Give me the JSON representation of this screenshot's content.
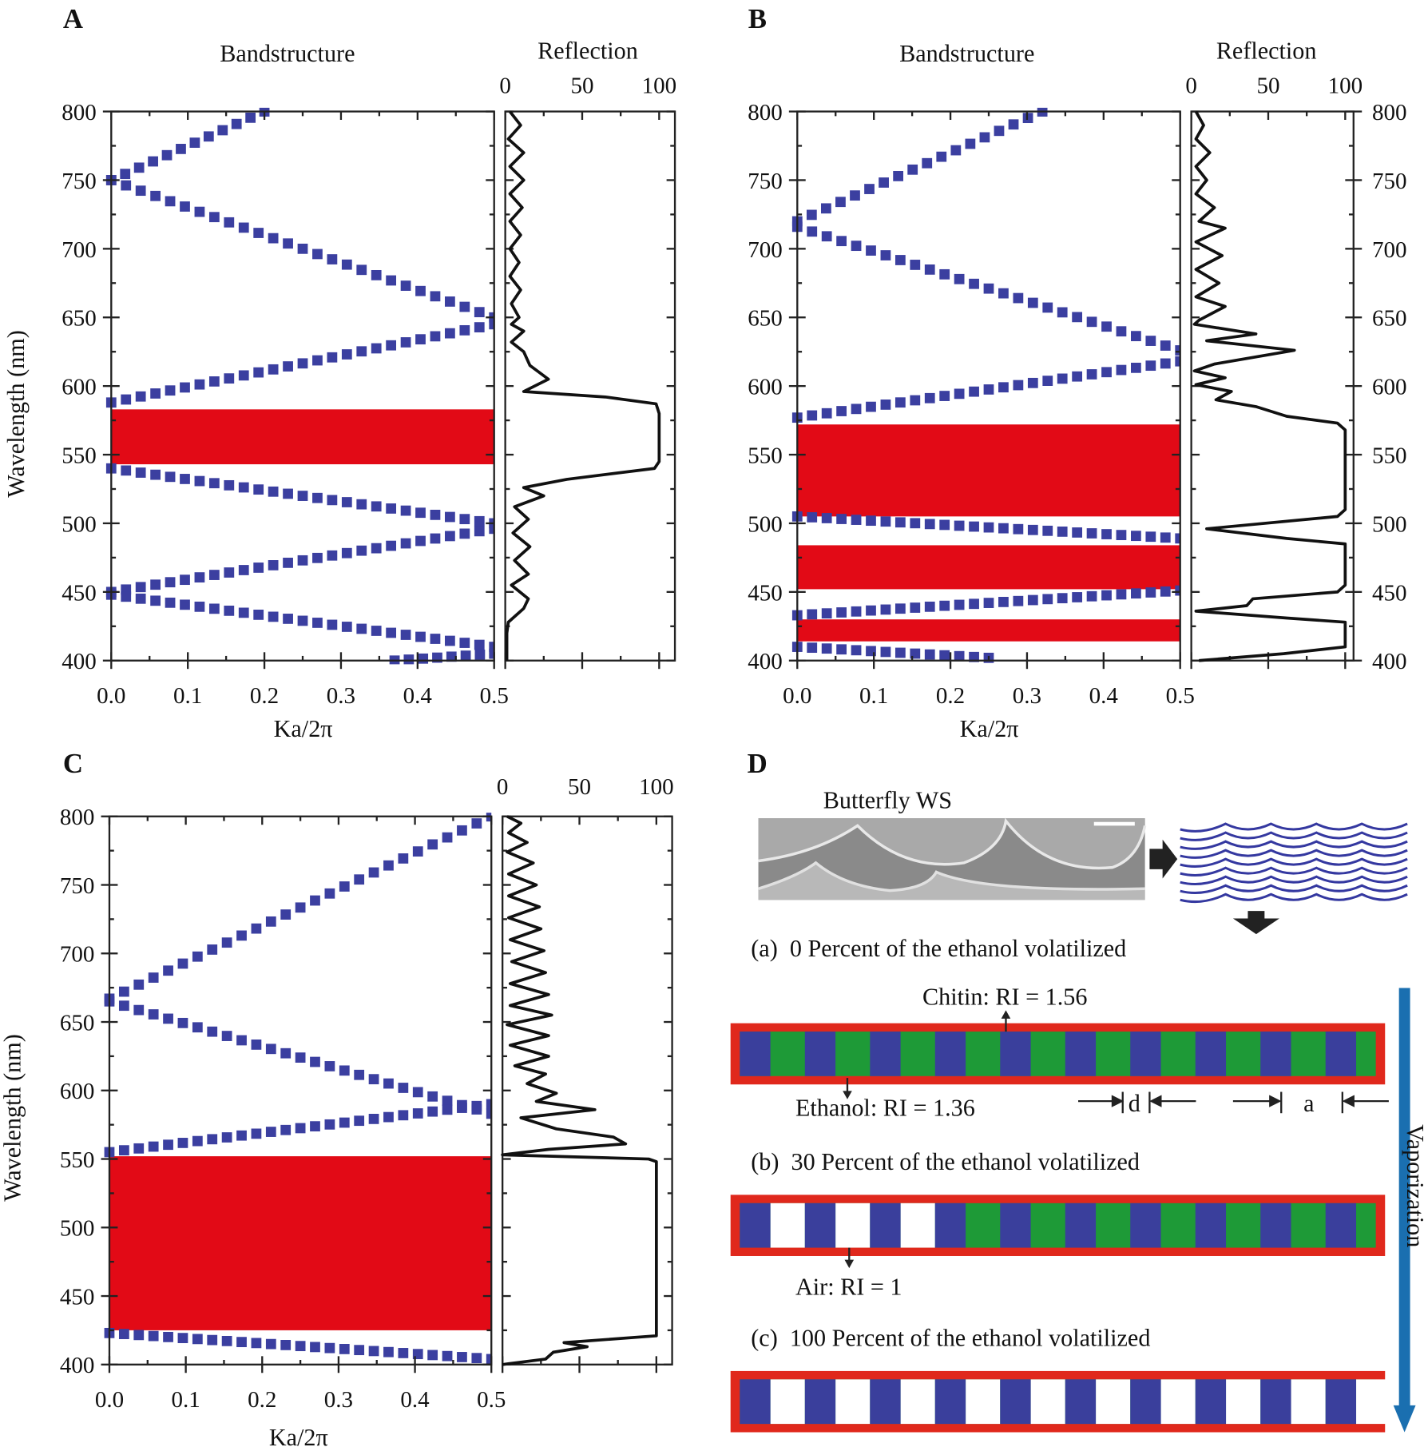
{
  "colors": {
    "band_marker": "#3b3fa0",
    "gap": "#e20a16",
    "reflection": "#111111",
    "chitin": "#3a3f9c",
    "ethanol": "#1e9a37",
    "air": "#ffffff",
    "frame": "#e0281c",
    "vaporization_arrow": "#1a6fb0"
  },
  "chart_data": [
    {
      "panel": "A",
      "type": "scatter+line",
      "band_title": "Bandstructure",
      "reflection_title": "Reflection",
      "xlabel": "Ka/2π",
      "ylabel": "Wavelength (nm)",
      "xlim": [
        0,
        0.5
      ],
      "ylim": [
        400,
        800
      ],
      "reflection_lim": [
        0,
        100
      ],
      "xticks": [
        "0.0",
        "0.1",
        "0.2",
        "0.3",
        "0.4",
        "0.5"
      ],
      "yticks": [
        "400",
        "450",
        "500",
        "550",
        "600",
        "650",
        "700",
        "750",
        "800"
      ],
      "rticks": [
        "0",
        "50",
        "100"
      ],
      "right_axis_labels": false,
      "bands": [
        [
          [
            0,
            750
          ],
          [
            0.2,
            800
          ]
        ],
        [
          [
            0,
            750
          ],
          [
            0.5,
            650
          ]
        ],
        [
          [
            0,
            588
          ],
          [
            0.5,
            645
          ]
        ],
        [
          [
            0,
            540
          ],
          [
            0.5,
            500
          ]
        ],
        [
          [
            0,
            450
          ],
          [
            0.5,
            496
          ]
        ],
        [
          [
            0,
            448
          ],
          [
            0.5,
            410
          ]
        ],
        [
          [
            0.37,
            400
          ],
          [
            0.5,
            405
          ]
        ]
      ],
      "gaps": [
        [
          543,
          583
        ]
      ],
      "reflection": [
        [
          800,
          3
        ],
        [
          790,
          10
        ],
        [
          780,
          2
        ],
        [
          770,
          12
        ],
        [
          760,
          3
        ],
        [
          750,
          12
        ],
        [
          740,
          3
        ],
        [
          730,
          11
        ],
        [
          720,
          3
        ],
        [
          710,
          10
        ],
        [
          700,
          3
        ],
        [
          690,
          9
        ],
        [
          680,
          3
        ],
        [
          670,
          10
        ],
        [
          660,
          4
        ],
        [
          650,
          9
        ],
        [
          645,
          4
        ],
        [
          640,
          12
        ],
        [
          632,
          4
        ],
        [
          625,
          12
        ],
        [
          615,
          16
        ],
        [
          605,
          28
        ],
        [
          596,
          12
        ],
        [
          592,
          65
        ],
        [
          587,
          98
        ],
        [
          580,
          100
        ],
        [
          545,
          100
        ],
        [
          540,
          97
        ],
        [
          532,
          40
        ],
        [
          526,
          12
        ],
        [
          520,
          25
        ],
        [
          512,
          6
        ],
        [
          503,
          15
        ],
        [
          493,
          5
        ],
        [
          483,
          16
        ],
        [
          473,
          6
        ],
        [
          463,
          15
        ],
        [
          455,
          4
        ],
        [
          445,
          15
        ],
        [
          438,
          12
        ],
        [
          428,
          2
        ],
        [
          420,
          1
        ],
        [
          400,
          1
        ]
      ]
    },
    {
      "panel": "B",
      "type": "scatter+line",
      "band_title": "Bandstructure",
      "reflection_title": "Reflection",
      "xlabel": "Ka/2π",
      "ylabel": "",
      "xlim": [
        0,
        0.5
      ],
      "ylim": [
        400,
        800
      ],
      "reflection_lim": [
        0,
        100
      ],
      "xticks": [
        "0.0",
        "0.1",
        "0.2",
        "0.3",
        "0.4",
        "0.5"
      ],
      "yticks": [
        "400",
        "450",
        "500",
        "550",
        "600",
        "650",
        "700",
        "750",
        "800"
      ],
      "rticks": [
        "0",
        "50",
        "100"
      ],
      "right_axis_labels": true,
      "bands": [
        [
          [
            0,
            720
          ],
          [
            0.32,
            800
          ]
        ],
        [
          [
            0,
            716
          ],
          [
            0.5,
            626
          ]
        ],
        [
          [
            0,
            577
          ],
          [
            0.5,
            618
          ]
        ],
        [
          [
            0,
            505
          ],
          [
            0.5,
            489
          ]
        ],
        [
          [
            0,
            433
          ],
          [
            0.5,
            451
          ]
        ],
        [
          [
            0,
            410
          ],
          [
            0.25,
            402
          ]
        ]
      ],
      "gaps": [
        [
          505,
          572
        ],
        [
          452,
          484
        ],
        [
          414,
          430
        ]
      ],
      "reflection": [
        [
          800,
          3
        ],
        [
          790,
          8
        ],
        [
          780,
          3
        ],
        [
          770,
          12
        ],
        [
          760,
          3
        ],
        [
          750,
          10
        ],
        [
          740,
          3
        ],
        [
          730,
          15
        ],
        [
          720,
          5
        ],
        [
          715,
          22
        ],
        [
          705,
          3
        ],
        [
          695,
          20
        ],
        [
          685,
          3
        ],
        [
          675,
          18
        ],
        [
          665,
          3
        ],
        [
          658,
          22
        ],
        [
          648,
          5
        ],
        [
          645,
          2
        ],
        [
          638,
          42
        ],
        [
          633,
          10
        ],
        [
          626,
          67
        ],
        [
          616,
          15
        ],
        [
          611,
          2
        ],
        [
          606,
          22
        ],
        [
          601,
          3
        ],
        [
          596,
          26
        ],
        [
          590,
          16
        ],
        [
          585,
          42
        ],
        [
          578,
          62
        ],
        [
          573,
          95
        ],
        [
          568,
          100
        ],
        [
          510,
          100
        ],
        [
          505,
          95
        ],
        [
          496,
          10
        ],
        [
          489,
          62
        ],
        [
          485,
          100
        ],
        [
          455,
          100
        ],
        [
          450,
          95
        ],
        [
          445,
          40
        ],
        [
          440,
          36
        ],
        [
          436,
          3
        ],
        [
          431,
          62
        ],
        [
          428,
          100
        ],
        [
          410,
          100
        ],
        [
          405,
          60
        ],
        [
          400,
          5
        ]
      ]
    },
    {
      "panel": "C",
      "type": "scatter+line",
      "band_title": "",
      "reflection_title": "",
      "xlabel": "Ka/2π",
      "ylabel": "Wavelength (nm)",
      "xlim": [
        0,
        0.5
      ],
      "ylim": [
        400,
        800
      ],
      "reflection_lim": [
        0,
        100
      ],
      "xticks": [
        "0.0",
        "0.1",
        "0.2",
        "0.3",
        "0.4",
        "0.5"
      ],
      "yticks": [
        "400",
        "450",
        "500",
        "550",
        "600",
        "650",
        "700",
        "750",
        "800"
      ],
      "rticks": [
        "0",
        "50",
        "100"
      ],
      "right_axis_labels": false,
      "bands": [
        [
          [
            0,
            667
          ],
          [
            0.5,
            800
          ]
        ],
        [
          [
            0,
            665
          ],
          [
            0.5,
            583
          ]
        ],
        [
          [
            0,
            555
          ],
          [
            0.5,
            590
          ]
        ],
        [
          [
            0,
            423
          ],
          [
            0.5,
            404
          ]
        ]
      ],
      "gaps": [
        [
          425,
          552
        ]
      ],
      "reflection": [
        [
          800,
          3
        ],
        [
          795,
          12
        ],
        [
          788,
          4
        ],
        [
          781,
          16
        ],
        [
          774,
          3
        ],
        [
          766,
          20
        ],
        [
          758,
          4
        ],
        [
          750,
          22
        ],
        [
          742,
          4
        ],
        [
          734,
          24
        ],
        [
          726,
          4
        ],
        [
          718,
          25
        ],
        [
          710,
          5
        ],
        [
          702,
          27
        ],
        [
          694,
          6
        ],
        [
          686,
          28
        ],
        [
          678,
          5
        ],
        [
          670,
          30
        ],
        [
          662,
          5
        ],
        [
          655,
          32
        ],
        [
          648,
          3
        ],
        [
          640,
          30
        ],
        [
          633,
          5
        ],
        [
          625,
          30
        ],
        [
          618,
          8
        ],
        [
          612,
          28
        ],
        [
          605,
          16
        ],
        [
          598,
          35
        ],
        [
          592,
          22
        ],
        [
          586,
          60
        ],
        [
          580,
          12
        ],
        [
          572,
          35
        ],
        [
          566,
          72
        ],
        [
          561,
          80
        ],
        [
          557,
          30
        ],
        [
          553,
          0
        ],
        [
          550,
          95
        ],
        [
          548,
          100
        ],
        [
          421,
          100
        ],
        [
          416,
          40
        ],
        [
          413,
          55
        ],
        [
          409,
          33
        ],
        [
          404,
          28
        ],
        [
          400,
          0
        ]
      ]
    }
  ],
  "diagram": {
    "panel": "D",
    "image_label": "Butterfly WS",
    "step_a": "(a)  0 Percent of the ethanol volatilized",
    "step_b": "(b)  30 Percent of the ethanol volatilized",
    "step_c": "(c)  100 Percent of the ethanol volatilized",
    "chitin_label": "Chitin: RI = 1.56",
    "ethanol_label": "Ethanol: RI = 1.36",
    "air_label": "Air: RI = 1",
    "d_label": "d",
    "a_label": "a",
    "vaporization_label": "Vaporization",
    "layers": 10,
    "air_filled_gaps_b": 3
  }
}
